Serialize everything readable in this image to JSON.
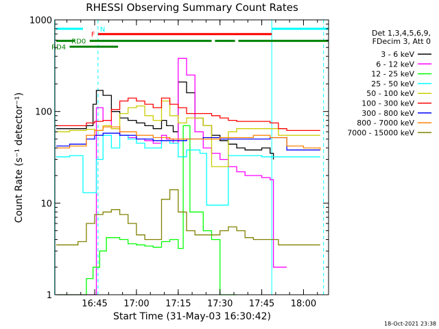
{
  "chart_data": {
    "type": "line",
    "title": "RHESSI Observing Summary Count Rates",
    "xlabel": "Start Time (31-May-03 16:30:42)",
    "ylabel": "Count Rate (s⁻¹ detector⁻¹)",
    "ylog": true,
    "ylim": [
      1,
      1000
    ],
    "xlim": [
      16.5117,
      18.15
    ],
    "grid": false,
    "legend_placement": "right",
    "xticks": [
      {
        "value": 16.75,
        "label": "16:45"
      },
      {
        "value": 17.0,
        "label": "17:00"
      },
      {
        "value": 17.25,
        "label": "17:15"
      },
      {
        "value": 17.5,
        "label": "17:30"
      },
      {
        "value": 17.75,
        "label": "17:45"
      },
      {
        "value": 18.0,
        "label": "18:00"
      }
    ],
    "yticks": [
      {
        "value": 1,
        "label": "1"
      },
      {
        "value": 10,
        "label": "10"
      },
      {
        "value": 100,
        "label": "100"
      },
      {
        "value": 1000,
        "label": "1000"
      }
    ],
    "legend_header": [
      "Det 1,3,4,5,6,9,",
      "FDecim 3, Att 0"
    ],
    "series": [
      {
        "name": "3 - 6 keV",
        "color": "#000000",
        "x": [
          16.52,
          16.6,
          16.7,
          16.74,
          16.76,
          16.8,
          16.85,
          16.9,
          16.95,
          17.0,
          17.05,
          17.1,
          17.15,
          17.18,
          17.22,
          17.25,
          17.3,
          17.35,
          17.4,
          17.45,
          17.5,
          17.55,
          17.6,
          17.65,
          17.7,
          17.75,
          17.8,
          17.82
        ],
        "y": [
          65,
          65,
          70,
          120,
          170,
          150,
          100,
          85,
          80,
          75,
          70,
          65,
          80,
          70,
          60,
          210,
          160,
          85,
          70,
          55,
          48,
          44,
          40,
          38,
          38,
          40,
          35,
          30
        ]
      },
      {
        "name": "6 - 12 keV",
        "color": "#ff00ff",
        "x": [
          16.52,
          16.6,
          16.7,
          16.74,
          16.76,
          16.8,
          16.85,
          16.9,
          16.95,
          17.0,
          17.05,
          17.1,
          17.15,
          17.18,
          17.22,
          17.25,
          17.3,
          17.35,
          17.4,
          17.45,
          17.5,
          17.55,
          17.6,
          17.65,
          17.7,
          17.75,
          17.8,
          17.82,
          17.85,
          17.9
        ],
        "y": [
          1,
          1,
          1,
          1,
          110,
          80,
          65,
          55,
          52,
          50,
          48,
          45,
          55,
          50,
          45,
          380,
          250,
          60,
          40,
          35,
          30,
          25,
          22,
          20,
          20,
          19,
          18,
          2,
          2,
          2
        ]
      },
      {
        "name": "12 - 25 keV",
        "color": "#00ff00",
        "x": [
          16.52,
          16.6,
          16.65,
          16.7,
          16.74,
          16.78,
          16.82,
          16.9,
          16.95,
          17.0,
          17.05,
          17.1,
          17.15,
          17.2,
          17.25,
          17.28,
          17.32,
          17.4,
          17.45,
          17.5,
          17.55,
          17.6
        ],
        "y": [
          1,
          1,
          1,
          1.5,
          2,
          3,
          4.2,
          4,
          3.6,
          3.5,
          3.4,
          3.3,
          3.8,
          4,
          3.2,
          70,
          8,
          5,
          4,
          1,
          1,
          1
        ]
      },
      {
        "name": "25 - 50 keV",
        "color": "#00ffff",
        "x": [
          16.52,
          16.6,
          16.66,
          16.68,
          16.72,
          16.76,
          16.8,
          16.85,
          16.9,
          16.95,
          17.0,
          17.05,
          17.1,
          17.15,
          17.2,
          17.25,
          17.3,
          17.38,
          17.42,
          17.48,
          17.55,
          17.6,
          17.65,
          17.7,
          17.75,
          17.8,
          17.9,
          18.0,
          18.1
        ],
        "y": [
          32,
          33,
          33,
          13,
          13,
          30,
          55,
          40,
          55,
          50,
          45,
          40,
          40,
          48,
          45,
          32,
          38,
          35,
          9.5,
          9.5,
          33,
          33,
          33,
          33,
          32,
          32,
          32,
          32,
          32
        ]
      },
      {
        "name": "50 - 100 keV",
        "color": "#cccc00",
        "x": [
          16.52,
          16.6,
          16.7,
          16.75,
          16.8,
          16.85,
          16.9,
          16.95,
          17.0,
          17.05,
          17.1,
          17.15,
          17.2,
          17.25,
          17.3,
          17.4,
          17.45,
          17.5,
          17.55,
          17.6,
          17.65,
          17.7,
          17.75,
          17.8,
          17.85,
          17.9,
          18.0,
          18.1
        ],
        "y": [
          60,
          62,
          64,
          62,
          70,
          65,
          95,
          110,
          115,
          90,
          80,
          130,
          90,
          75,
          85,
          70,
          25,
          25,
          60,
          65,
          65,
          65,
          65,
          65,
          55,
          55,
          55,
          55
        ]
      },
      {
        "name": "100 - 300 keV",
        "color": "#ff0000",
        "x": [
          16.52,
          16.6,
          16.65,
          16.7,
          16.75,
          16.8,
          16.85,
          16.9,
          16.95,
          17.0,
          17.05,
          17.1,
          17.15,
          17.2,
          17.25,
          17.3,
          17.35,
          17.4,
          17.45,
          17.5,
          17.55,
          17.6,
          17.65,
          17.7,
          17.75,
          17.8,
          17.85,
          17.9,
          18.0,
          18.1
        ],
        "y": [
          70,
          70,
          70,
          75,
          78,
          80,
          105,
          130,
          140,
          130,
          120,
          110,
          140,
          120,
          110,
          95,
          95,
          95,
          90,
          85,
          80,
          78,
          78,
          78,
          78,
          75,
          65,
          62,
          62,
          62
        ]
      },
      {
        "name": "300 - 800 keV",
        "color": "#0000ff",
        "x": [
          16.52,
          16.6,
          16.7,
          16.75,
          16.8,
          16.9,
          17.0,
          17.1,
          17.2,
          17.3,
          17.4,
          17.5,
          17.6,
          17.7,
          17.8,
          17.9,
          18.0,
          18.1
        ],
        "y": [
          42,
          44,
          50,
          55,
          58,
          55,
          50,
          48,
          48,
          50,
          52,
          50,
          50,
          50,
          52,
          38,
          38,
          38
        ]
      },
      {
        "name": "800 - 7000 keV",
        "color": "#ff8000",
        "x": [
          16.52,
          16.6,
          16.7,
          16.75,
          16.8,
          16.9,
          17.0,
          17.1,
          17.2,
          17.3,
          17.4,
          17.5,
          17.6,
          17.7,
          17.8,
          17.9,
          18.0,
          18.1
        ],
        "y": [
          40,
          42,
          55,
          62,
          68,
          60,
          55,
          52,
          50,
          50,
          50,
          52,
          52,
          55,
          52,
          42,
          40,
          38
        ]
      },
      {
        "name": "7000 - 15000 keV",
        "color": "#808000",
        "x": [
          16.52,
          16.6,
          16.65,
          16.7,
          16.75,
          16.8,
          16.85,
          16.9,
          16.95,
          17.0,
          17.05,
          17.1,
          17.15,
          17.2,
          17.25,
          17.3,
          17.35,
          17.4,
          17.45,
          17.5,
          17.55,
          17.6,
          17.65,
          17.7,
          17.75,
          17.8,
          17.85,
          17.9,
          18.0,
          18.1
        ],
        "y": [
          3.5,
          3.5,
          3.8,
          6,
          7.5,
          8,
          8.5,
          7.5,
          6,
          4.5,
          4,
          4,
          11,
          14,
          8,
          5,
          4.5,
          4.5,
          4.5,
          5,
          5.5,
          5,
          4.2,
          4,
          4,
          4,
          3.5,
          3.5,
          3.5,
          3.5
        ]
      }
    ],
    "state_bars": [
      {
        "label": "N",
        "color": "#00ffff",
        "level": 800,
        "segments": [
          [
            16.52,
            16.68
          ],
          [
            17.81,
            18.15
          ]
        ],
        "label_at": 16.77,
        "label_side": "right"
      },
      {
        "label": "F",
        "color": "#ff0000",
        "level": 700,
        "segments": [
          [
            16.77,
            17.81
          ]
        ],
        "label_at": 16.765,
        "label_side": "left"
      },
      {
        "label": "RD0",
        "color": "#008000",
        "level": 590,
        "segments": [
          [
            16.52,
            16.63
          ],
          [
            16.72,
            17.45
          ],
          [
            17.47,
            17.59
          ],
          [
            17.61,
            18.15
          ]
        ],
        "label_at": 16.71,
        "label_side": "left"
      },
      {
        "label": "RD4",
        "color": "#008000",
        "level": 510,
        "segments": [
          [
            16.6,
            16.89
          ]
        ],
        "label_at": 16.59,
        "label_side": "left"
      }
    ],
    "vlines": [
      {
        "x": 16.51,
        "color": "#00ffff",
        "dashed": false
      },
      {
        "x": 16.77,
        "color": "#00ffff",
        "dashed": true
      },
      {
        "x": 17.81,
        "color": "#00ffff",
        "dashed": false
      },
      {
        "x": 18.12,
        "color": "#00ffff",
        "dashed": true
      }
    ],
    "footer": "18-Oct-2021 23:38"
  }
}
